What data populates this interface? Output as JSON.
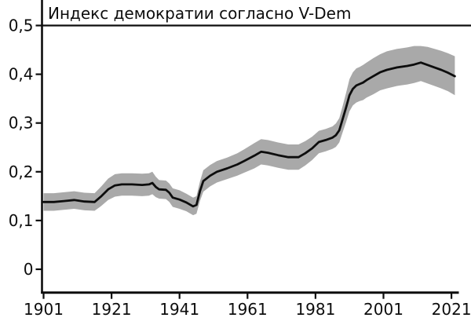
{
  "page": {
    "background": "#ffffff"
  },
  "chart_data": {
    "type": "line",
    "title": "Индекс демократии согласно V-Dem",
    "legend": "none",
    "grid": "off",
    "x_axis": {
      "range": [
        1901,
        2022
      ],
      "tick_labels": [
        "1901",
        "1921",
        "1941",
        "1961",
        "1981",
        "2001",
        "2021"
      ],
      "tick_values": [
        1901,
        1921,
        1941,
        1961,
        1981,
        2001,
        2021
      ]
    },
    "y_axis": {
      "range": [
        0,
        0.5
      ],
      "tick_labels": [
        "0",
        "0,1",
        "0,2",
        "0,3",
        "0,4",
        "0,5"
      ],
      "tick_values": [
        0,
        0.1,
        0.2,
        0.3,
        0.4,
        0.5
      ]
    },
    "series": [
      {
        "name": "Индекс демократии согласно V-Dem",
        "has_confidence_band": true,
        "columns": [
          "year",
          "value",
          "lo",
          "hi"
        ],
        "rows": [
          [
            1901,
            0.138,
            0.12,
            0.156
          ],
          [
            1904,
            0.138,
            0.12,
            0.156
          ],
          [
            1907,
            0.14,
            0.122,
            0.158
          ],
          [
            1910,
            0.142,
            0.124,
            0.16
          ],
          [
            1913,
            0.139,
            0.121,
            0.157
          ],
          [
            1916,
            0.138,
            0.12,
            0.156
          ],
          [
            1918,
            0.15,
            0.13,
            0.17
          ],
          [
            1920,
            0.164,
            0.142,
            0.186
          ],
          [
            1922,
            0.172,
            0.149,
            0.195
          ],
          [
            1924,
            0.174,
            0.151,
            0.197
          ],
          [
            1927,
            0.174,
            0.151,
            0.197
          ],
          [
            1930,
            0.173,
            0.15,
            0.196
          ],
          [
            1932,
            0.174,
            0.151,
            0.197
          ],
          [
            1933,
            0.177,
            0.154,
            0.2
          ],
          [
            1934,
            0.169,
            0.148,
            0.19
          ],
          [
            1935,
            0.164,
            0.145,
            0.183
          ],
          [
            1937,
            0.163,
            0.144,
            0.182
          ],
          [
            1938,
            0.157,
            0.138,
            0.176
          ],
          [
            1939,
            0.147,
            0.128,
            0.166
          ],
          [
            1941,
            0.143,
            0.124,
            0.162
          ],
          [
            1943,
            0.137,
            0.119,
            0.155
          ],
          [
            1945,
            0.129,
            0.111,
            0.147
          ],
          [
            1946,
            0.132,
            0.114,
            0.15
          ],
          [
            1947,
            0.16,
            0.14,
            0.18
          ],
          [
            1948,
            0.181,
            0.159,
            0.203
          ],
          [
            1950,
            0.192,
            0.17,
            0.214
          ],
          [
            1952,
            0.2,
            0.178,
            0.222
          ],
          [
            1955,
            0.207,
            0.185,
            0.229
          ],
          [
            1958,
            0.215,
            0.192,
            0.238
          ],
          [
            1960,
            0.222,
            0.198,
            0.246
          ],
          [
            1963,
            0.233,
            0.207,
            0.259
          ],
          [
            1965,
            0.241,
            0.215,
            0.267
          ],
          [
            1967,
            0.239,
            0.213,
            0.265
          ],
          [
            1970,
            0.234,
            0.208,
            0.26
          ],
          [
            1973,
            0.23,
            0.204,
            0.256
          ],
          [
            1976,
            0.23,
            0.204,
            0.256
          ],
          [
            1978,
            0.238,
            0.213,
            0.263
          ],
          [
            1980,
            0.248,
            0.224,
            0.272
          ],
          [
            1982,
            0.261,
            0.238,
            0.284
          ],
          [
            1984,
            0.265,
            0.242,
            0.288
          ],
          [
            1986,
            0.27,
            0.247,
            0.293
          ],
          [
            1987,
            0.275,
            0.251,
            0.299
          ],
          [
            1988,
            0.285,
            0.26,
            0.31
          ],
          [
            1989,
            0.308,
            0.281,
            0.335
          ],
          [
            1990,
            0.332,
            0.302,
            0.362
          ],
          [
            1991,
            0.357,
            0.324,
            0.39
          ],
          [
            1992,
            0.37,
            0.336,
            0.404
          ],
          [
            1993,
            0.377,
            0.342,
            0.412
          ],
          [
            1994,
            0.38,
            0.345,
            0.415
          ],
          [
            1995,
            0.383,
            0.347,
            0.419
          ],
          [
            1996,
            0.388,
            0.352,
            0.424
          ],
          [
            1998,
            0.396,
            0.359,
            0.433
          ],
          [
            2000,
            0.404,
            0.367,
            0.441
          ],
          [
            2002,
            0.409,
            0.371,
            0.447
          ],
          [
            2005,
            0.414,
            0.376,
            0.452
          ],
          [
            2008,
            0.417,
            0.379,
            0.455
          ],
          [
            2010,
            0.42,
            0.382,
            0.458
          ],
          [
            2012,
            0.424,
            0.386,
            0.458
          ],
          [
            2014,
            0.419,
            0.381,
            0.456
          ],
          [
            2016,
            0.414,
            0.376,
            0.452
          ],
          [
            2018,
            0.409,
            0.371,
            0.448
          ],
          [
            2020,
            0.403,
            0.365,
            0.443
          ],
          [
            2022,
            0.396,
            0.357,
            0.437
          ]
        ]
      }
    ],
    "colors": {
      "line": "#0d0d0d",
      "band": "#a9a9a9",
      "axis": "#0d0d0d",
      "text": "#0d0d0d",
      "background": "#ffffff"
    }
  }
}
